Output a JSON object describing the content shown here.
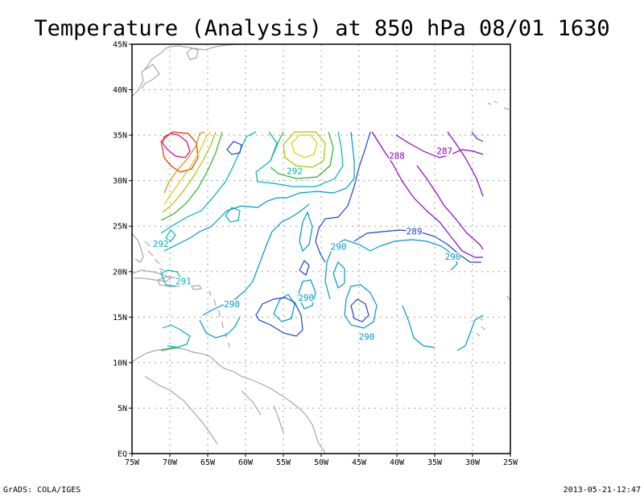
{
  "title": "Temperature (Analysis) at 850 hPa 08/01 1630",
  "footer_left": "GrADS: COLA/IGES",
  "footer_right": "2013-05-21-12:47",
  "lat_labels": [
    "EQ",
    "5N",
    "10N",
    "15N",
    "20N",
    "25N",
    "30N",
    "35N",
    "40N",
    "45N"
  ],
  "lon_labels": [
    "75W",
    "70W",
    "65W",
    "60W",
    "55W",
    "50W",
    "45W",
    "40W",
    "35W",
    "30W",
    "25W"
  ],
  "contour_labels": [
    {
      "text": "292",
      "color": "#00b4b4",
      "lon": -53.5,
      "lat": 30.8
    },
    {
      "text": "288",
      "color": "#8c00c8",
      "lon": -40.0,
      "lat": 32.5
    },
    {
      "text": "287",
      "color": "#8c00c8",
      "lon": -33.7,
      "lat": 33.0
    },
    {
      "text": "289",
      "color": "#2040d0",
      "lon": -37.7,
      "lat": 24.2
    },
    {
      "text": "290",
      "color": "#0096d2",
      "lon": -32.6,
      "lat": 21.4
    },
    {
      "text": "290",
      "color": "#0096d2",
      "lon": -47.7,
      "lat": 22.5
    },
    {
      "text": "292",
      "color": "#00b4b4",
      "lon": -71.2,
      "lat": 22.8
    },
    {
      "text": "291",
      "color": "#00b4b4",
      "lon": -68.2,
      "lat": 18.7
    },
    {
      "text": "290",
      "color": "#0096d2",
      "lon": -52.0,
      "lat": 16.9
    },
    {
      "text": "290",
      "color": "#0096d2",
      "lon": -61.8,
      "lat": 16.2
    },
    {
      "text": "290",
      "color": "#0096d2",
      "lon": -44.0,
      "lat": 12.6
    }
  ],
  "colors": {
    "frame": "#000000",
    "grid": "#a0a0a0",
    "coastline": "#a8a8a8",
    "contour_purple": "#8c00c8",
    "contour_blue": "#2040d0",
    "contour_lightblue": "#0096d2",
    "contour_cyan": "#00b4b4",
    "contour_green": "#28b428",
    "contour_yellowgreen": "#a0c800",
    "contour_yellow": "#e6c800",
    "contour_orange": "#e68c00",
    "contour_red": "#e63200",
    "contour_magenta": "#d2008c"
  }
}
